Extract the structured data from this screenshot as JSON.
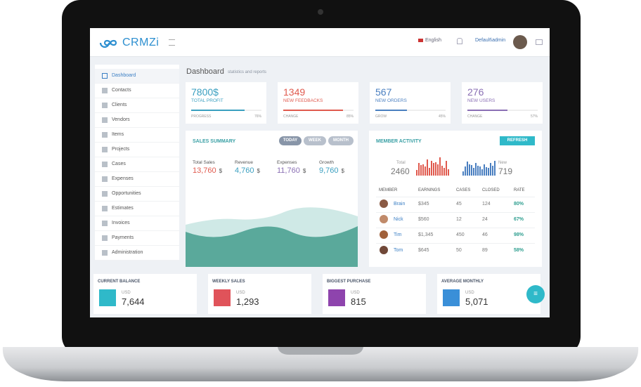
{
  "header": {
    "logo": "CRMZi",
    "language": "English",
    "user": "Default\\admin"
  },
  "sidebar": {
    "items": [
      "Dashboard",
      "Contacts",
      "Clients",
      "Vendors",
      "Items",
      "Projects",
      "Cases",
      "Expenses",
      "Opportunities",
      "Estimates",
      "Invoices",
      "Payments",
      "Administration"
    ]
  },
  "page": {
    "title": "Dashboard",
    "subtitle": "statistics and reports"
  },
  "stat_cards": [
    {
      "value": "7800$",
      "label": "TOTAL PROFIT",
      "footer": "PROGRESS",
      "percent": {
        "value": 76,
        "label": "76%"
      }
    },
    {
      "value": "1349",
      "label": "NEW FEEDBACKS",
      "footer": "CHANGE",
      "percent": {
        "value": 85,
        "label": "85%"
      }
    },
    {
      "value": "567",
      "label": "NEW ORDERS",
      "footer": "GROW",
      "percent": {
        "value": 45,
        "label": "45%"
      }
    },
    {
      "value": "276",
      "label": "NEW USERS",
      "footer": "CHANGE",
      "percent": {
        "value": 57,
        "label": "57%"
      }
    }
  ],
  "sales_summary": {
    "title": "SALES SUMMARY",
    "tabs": [
      "TODAY",
      "WEEK",
      "MONTH"
    ],
    "metrics": [
      {
        "label": "Total Sales",
        "value": "13,760",
        "unit": "$"
      },
      {
        "label": "Revenue",
        "value": "4,760",
        "unit": "$"
      },
      {
        "label": "Expenses",
        "value": "11,760",
        "unit": "$"
      },
      {
        "label": "Growth",
        "value": "9,760",
        "unit": "$"
      }
    ]
  },
  "member_activity": {
    "title": "MEMBER ACTIVITY",
    "button": "REFRESH",
    "total": {
      "label": "Total",
      "value": "2460"
    },
    "new": {
      "label": "New",
      "value": "719"
    },
    "table": {
      "columns": [
        "MEMBER",
        "EARNINGS",
        "CASES",
        "CLOSED",
        "RATE"
      ],
      "rows": [
        [
          "Brain",
          "$345",
          "45",
          "124",
          "80%"
        ],
        [
          "Nick",
          "$560",
          "12",
          "24",
          "67%"
        ],
        [
          "Tim",
          "$1,345",
          "450",
          "46",
          "98%"
        ],
        [
          "Tom",
          "$645",
          "50",
          "89",
          "58%"
        ]
      ]
    }
  },
  "bottom_cards": [
    {
      "title": "CURRENT BALANCE",
      "currency": "USD",
      "value": "7,644"
    },
    {
      "title": "WEEKLY SALES",
      "currency": "USD",
      "value": "1,293"
    },
    {
      "title": "BIGGEST PURCHASE",
      "currency": "USD",
      "value": "815"
    },
    {
      "title": "AVERAGE MONTHLY",
      "currency": "USD",
      "value": "5,071"
    }
  ]
}
